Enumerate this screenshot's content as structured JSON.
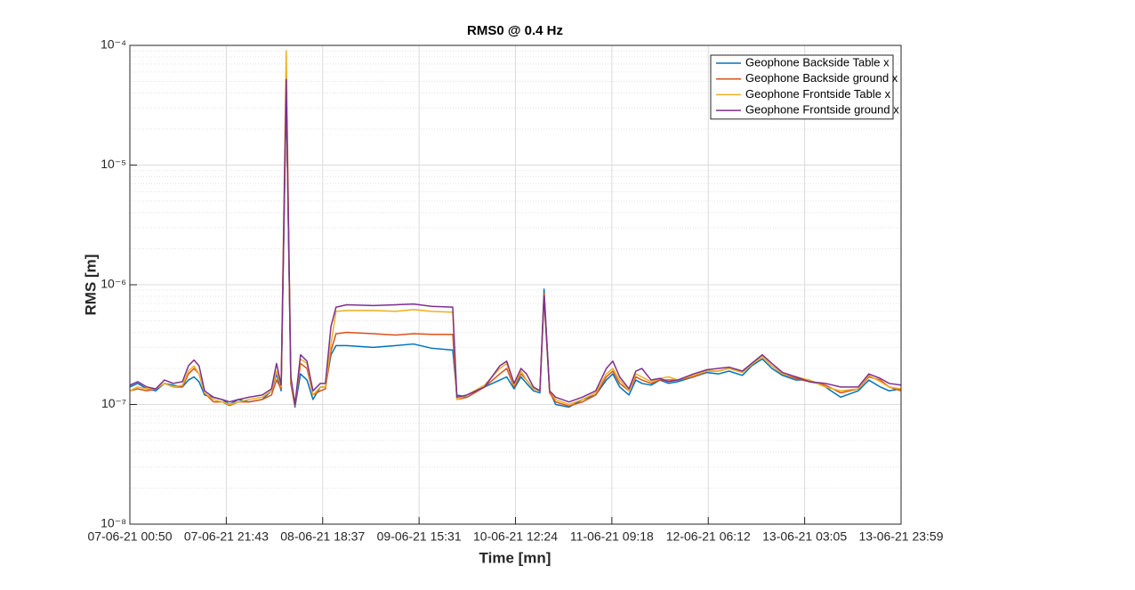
{
  "chart_data": {
    "type": "line",
    "title": "RMS0 @ 0.4 Hz",
    "x_label": "Time [mn]",
    "y_label": "RMS [m]",
    "log_y": true,
    "grid": true,
    "legend": "northeast",
    "xlim": [
      0,
      167.2
    ],
    "xticks": [
      {
        "value": 0,
        "label": "07-06-21 00:50"
      },
      {
        "value": 20.9,
        "label": "07-06-21 21:43"
      },
      {
        "value": 41.8,
        "label": "08-06-21 18:37"
      },
      {
        "value": 62.7,
        "label": "09-06-21 15:31"
      },
      {
        "value": 83.6,
        "label": "10-06-21 12:24"
      },
      {
        "value": 104.5,
        "label": "11-06-21 09:18"
      },
      {
        "value": 125.4,
        "label": "12-06-21 06:12"
      },
      {
        "value": 146.3,
        "label": "13-06-21 03:05"
      },
      {
        "value": 167.2,
        "label": "13-06-21 23:59"
      }
    ],
    "ylim": [
      1e-08,
      0.0001
    ],
    "yticks": [
      {
        "value": 1e-08,
        "label": "10⁻⁸"
      },
      {
        "value": 1e-07,
        "label": "10⁻⁷"
      },
      {
        "value": 1e-06,
        "label": "10⁻⁶"
      },
      {
        "value": 1e-05,
        "label": "10⁻⁵"
      },
      {
        "value": 0.0001,
        "label": "10⁻⁴"
      }
    ],
    "x": [
      0,
      1.7,
      3.7,
      5.6,
      7.5,
      9.4,
      11.4,
      12.7,
      13.9,
      15.0,
      16.2,
      18.1,
      20.0,
      21.6,
      23.5,
      25.8,
      28.7,
      30.7,
      31.8,
      32.8,
      33.9,
      34.9,
      35.8,
      37.0,
      38.4,
      39.7,
      41.3,
      42.4,
      43.6,
      44.7,
      47.0,
      52.8,
      57.6,
      61.5,
      65.4,
      70.0,
      70.9,
      73.1,
      76.9,
      80.2,
      81.7,
      83.3,
      84.8,
      86.0,
      87.5,
      88.9,
      89.8,
      91.0,
      92.3,
      95.2,
      98.1,
      101.0,
      103.3,
      104.7,
      106.2,
      108.2,
      109.7,
      111.0,
      113.0,
      114.9,
      116.8,
      118.8,
      122.2,
      125.1,
      127.6,
      129.9,
      132.8,
      134.8,
      137.1,
      139.2,
      141.5,
      144.4,
      147.3,
      150.8,
      154.1,
      157.9,
      160.2,
      162.7,
      164.6,
      167.2
    ],
    "series": [
      {
        "name": "Geophone Backside Table x",
        "color": "#0072BD",
        "values": [
          1.4e-07,
          1.5e-07,
          1.35e-07,
          1.3e-07,
          1.5e-07,
          1.45e-07,
          1.4e-07,
          1.6e-07,
          1.7e-07,
          1.55e-07,
          1.2e-07,
          1.15e-07,
          1.1e-07,
          1e-07,
          1.1e-07,
          1.05e-07,
          1.1e-07,
          1.3e-07,
          1.8e-07,
          1.3e-07,
          4e-05,
          1.5e-07,
          9.5e-08,
          1.8e-07,
          1.6e-07,
          1.1e-07,
          1.4e-07,
          1.4e-07,
          2.6e-07,
          3.1e-07,
          3.1e-07,
          3e-07,
          3.1e-07,
          3.2e-07,
          2.95e-07,
          2.85e-07,
          1.2e-07,
          1.15e-07,
          1.4e-07,
          1.6e-07,
          1.7e-07,
          1.35e-07,
          1.7e-07,
          1.5e-07,
          1.3e-07,
          1.25e-07,
          9.2e-07,
          1.3e-07,
          1e-07,
          9.5e-08,
          1.1e-07,
          1.2e-07,
          1.6e-07,
          1.8e-07,
          1.4e-07,
          1.2e-07,
          1.6e-07,
          1.5e-07,
          1.45e-07,
          1.6e-07,
          1.5e-07,
          1.55e-07,
          1.7e-07,
          1.85e-07,
          1.8e-07,
          1.9e-07,
          1.75e-07,
          2.1e-07,
          2.4e-07,
          2e-07,
          1.75e-07,
          1.6e-07,
          1.6e-07,
          1.4e-07,
          1.15e-07,
          1.3e-07,
          1.6e-07,
          1.4e-07,
          1.3e-07,
          1.35e-07
        ]
      },
      {
        "name": "Geophone Backside ground x",
        "color": "#D95319",
        "values": [
          1.3e-07,
          1.35e-07,
          1.3e-07,
          1.35e-07,
          1.5e-07,
          1.4e-07,
          1.4e-07,
          1.8e-07,
          2e-07,
          1.8e-07,
          1.25e-07,
          1.05e-07,
          1.05e-07,
          9.8e-08,
          1.05e-07,
          1.05e-07,
          1.1e-07,
          1.2e-07,
          1.6e-07,
          1.35e-07,
          4.5e-05,
          1.5e-07,
          9.7e-08,
          2.2e-07,
          2e-07,
          1.2e-07,
          1.3e-07,
          1.35e-07,
          2.8e-07,
          3.9e-07,
          4e-07,
          3.9e-07,
          3.8e-07,
          3.9e-07,
          3.85e-07,
          3.85e-07,
          1.1e-07,
          1.15e-07,
          1.4e-07,
          1.8e-07,
          2e-07,
          1.4e-07,
          1.8e-07,
          1.6e-07,
          1.35e-07,
          1.3e-07,
          8.5e-07,
          1.25e-07,
          1.05e-07,
          9.7e-08,
          1.05e-07,
          1.2e-07,
          1.7e-07,
          1.9e-07,
          1.5e-07,
          1.3e-07,
          1.7e-07,
          1.6e-07,
          1.5e-07,
          1.6e-07,
          1.6e-07,
          1.6e-07,
          1.7e-07,
          1.9e-07,
          1.9e-07,
          2e-07,
          1.85e-07,
          2.2e-07,
          2.5e-07,
          2.1e-07,
          1.8e-07,
          1.65e-07,
          1.55e-07,
          1.45e-07,
          1.25e-07,
          1.35e-07,
          1.7e-07,
          1.6e-07,
          1.4e-07,
          1.3e-07
        ]
      },
      {
        "name": "Geophone Frontside Table x",
        "color": "#EDB120",
        "values": [
          1.3e-07,
          1.4e-07,
          1.35e-07,
          1.35e-07,
          1.5e-07,
          1.4e-07,
          1.45e-07,
          1.9e-07,
          2.1e-07,
          1.8e-07,
          1.25e-07,
          1.1e-07,
          1.05e-07,
          1e-07,
          1.05e-07,
          1.1e-07,
          1.15e-07,
          1.3e-07,
          1.9e-07,
          1.4e-07,
          9e-05,
          1.6e-07,
          1e-07,
          2.4e-07,
          2.2e-07,
          1.2e-07,
          1.4e-07,
          1.4e-07,
          3.2e-07,
          6e-07,
          6.1e-07,
          6.1e-07,
          6e-07,
          6.2e-07,
          6e-07,
          5.9e-07,
          1.1e-07,
          1.2e-07,
          1.45e-07,
          2e-07,
          2.2e-07,
          1.45e-07,
          1.9e-07,
          1.6e-07,
          1.35e-07,
          1.3e-07,
          7.5e-07,
          1.3e-07,
          1.1e-07,
          1e-07,
          1.1e-07,
          1.25e-07,
          1.8e-07,
          2e-07,
          1.6e-07,
          1.3e-07,
          1.8e-07,
          1.7e-07,
          1.55e-07,
          1.65e-07,
          1.7e-07,
          1.6e-07,
          1.75e-07,
          1.9e-07,
          1.9e-07,
          2e-07,
          1.85e-07,
          2.15e-07,
          2.5e-07,
          2.1e-07,
          1.8e-07,
          1.7e-07,
          1.6e-07,
          1.4e-07,
          1.3e-07,
          1.35e-07,
          1.75e-07,
          1.55e-07,
          1.4e-07,
          1.35e-07
        ]
      },
      {
        "name": "Geophone Frontside ground x",
        "color": "#7E2F8E",
        "values": [
          1.45e-07,
          1.55e-07,
          1.4e-07,
          1.35e-07,
          1.6e-07,
          1.5e-07,
          1.55e-07,
          2.1e-07,
          2.35e-07,
          2.1e-07,
          1.3e-07,
          1.15e-07,
          1.1e-07,
          1.05e-07,
          1.1e-07,
          1.15e-07,
          1.2e-07,
          1.35e-07,
          2.2e-07,
          1.45e-07,
          5.2e-05,
          1.7e-07,
          1e-07,
          2.6e-07,
          2.3e-07,
          1.3e-07,
          1.5e-07,
          1.5e-07,
          4.5e-07,
          6.5e-07,
          6.8e-07,
          6.7e-07,
          6.8e-07,
          6.9e-07,
          6.6e-07,
          6.5e-07,
          1.15e-07,
          1.2e-07,
          1.4e-07,
          2.1e-07,
          2.3e-07,
          1.5e-07,
          2e-07,
          1.8e-07,
          1.4e-07,
          1.3e-07,
          8e-07,
          1.3e-07,
          1.15e-07,
          1.05e-07,
          1.15e-07,
          1.3e-07,
          2e-07,
          2.3e-07,
          1.7e-07,
          1.35e-07,
          1.9e-07,
          2e-07,
          1.6e-07,
          1.65e-07,
          1.55e-07,
          1.6e-07,
          1.8e-07,
          1.95e-07,
          2e-07,
          2.05e-07,
          1.9e-07,
          2.2e-07,
          2.6e-07,
          2.2e-07,
          1.85e-07,
          1.7e-07,
          1.55e-07,
          1.5e-07,
          1.4e-07,
          1.4e-07,
          1.8e-07,
          1.65e-07,
          1.5e-07,
          1.45e-07
        ]
      }
    ]
  }
}
